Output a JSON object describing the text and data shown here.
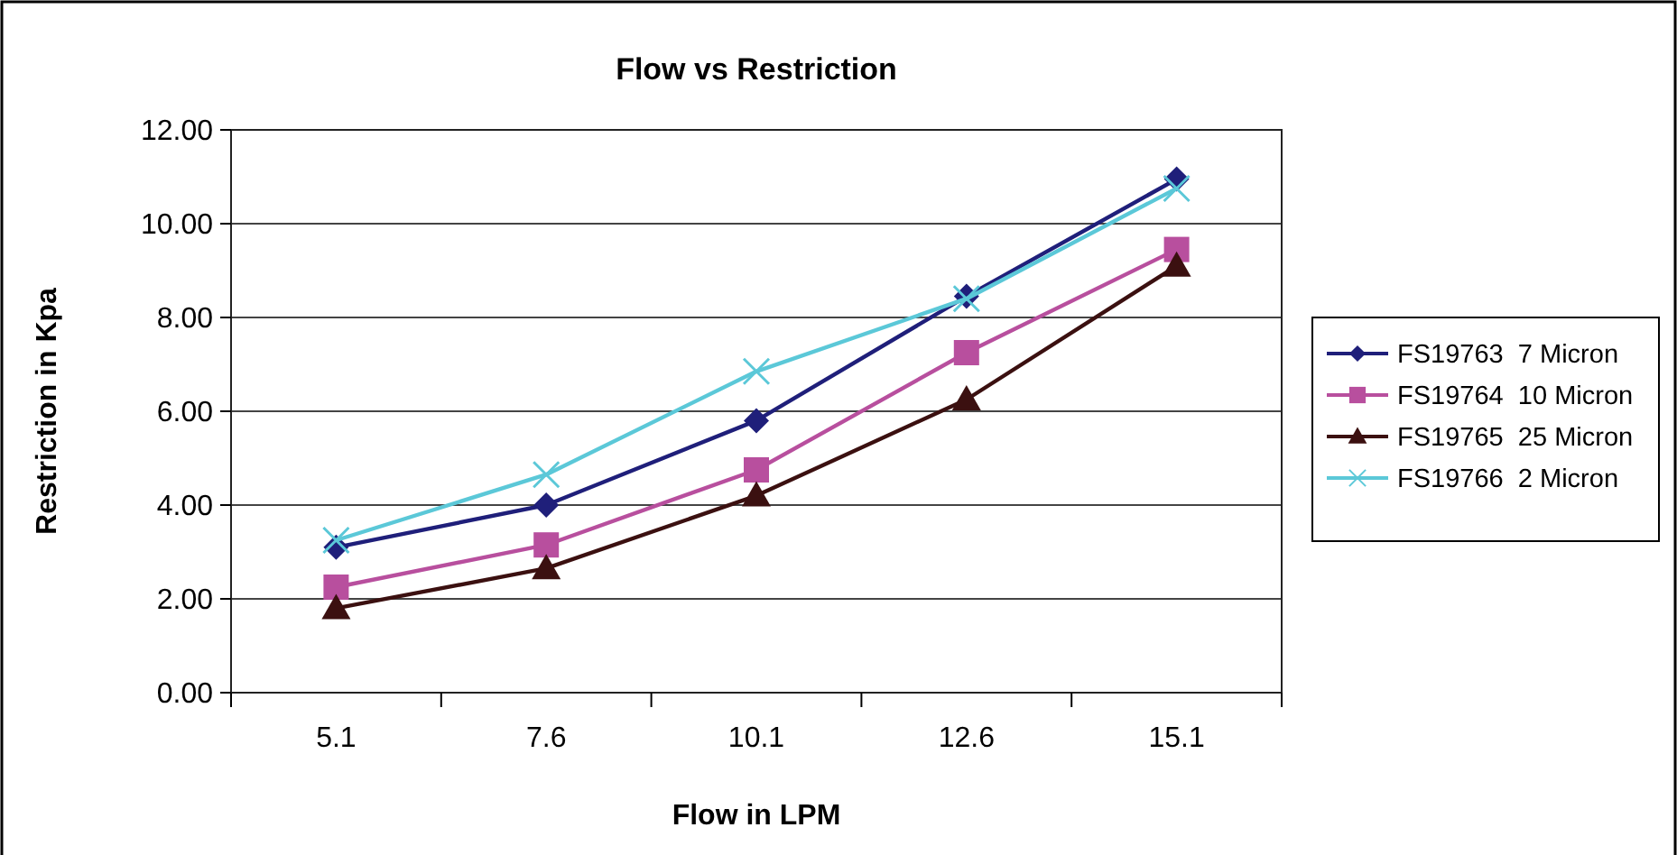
{
  "chart_data": {
    "type": "line",
    "title": "Flow vs Restriction",
    "xlabel": "Flow in LPM",
    "ylabel": "Restriction in Kpa",
    "categories": [
      "5.1",
      "7.6",
      "10.1",
      "12.6",
      "15.1"
    ],
    "series": [
      {
        "name": "FS19763  7 Micron",
        "color": "#1f1f7a",
        "marker": "diamond",
        "values": [
          3.1,
          4.0,
          5.8,
          8.45,
          10.95
        ]
      },
      {
        "name": "FS19764  10 Micron",
        "color": "#b84f9e",
        "marker": "square",
        "values": [
          2.25,
          3.15,
          4.75,
          7.25,
          9.45
        ]
      },
      {
        "name": "FS19765  25 Micron",
        "color": "#3b1010",
        "marker": "triangle",
        "values": [
          1.8,
          2.65,
          4.2,
          6.25,
          9.1
        ]
      },
      {
        "name": "FS19766  2 Micron",
        "color": "#5bc8d8",
        "marker": "cross",
        "values": [
          3.25,
          4.65,
          6.85,
          8.4,
          10.75
        ]
      }
    ],
    "ylim": [
      0,
      12
    ],
    "yticks": [
      {
        "value": 0,
        "label": "0.00"
      },
      {
        "value": 2,
        "label": "2.00"
      },
      {
        "value": 4,
        "label": "4.00"
      },
      {
        "value": 6,
        "label": "6.00"
      },
      {
        "value": 8,
        "label": "8.00"
      },
      {
        "value": 10,
        "label": "10.00"
      },
      {
        "value": 12,
        "label": "12.00"
      }
    ],
    "grid": "y",
    "legend": "right",
    "line_style": "solid"
  }
}
